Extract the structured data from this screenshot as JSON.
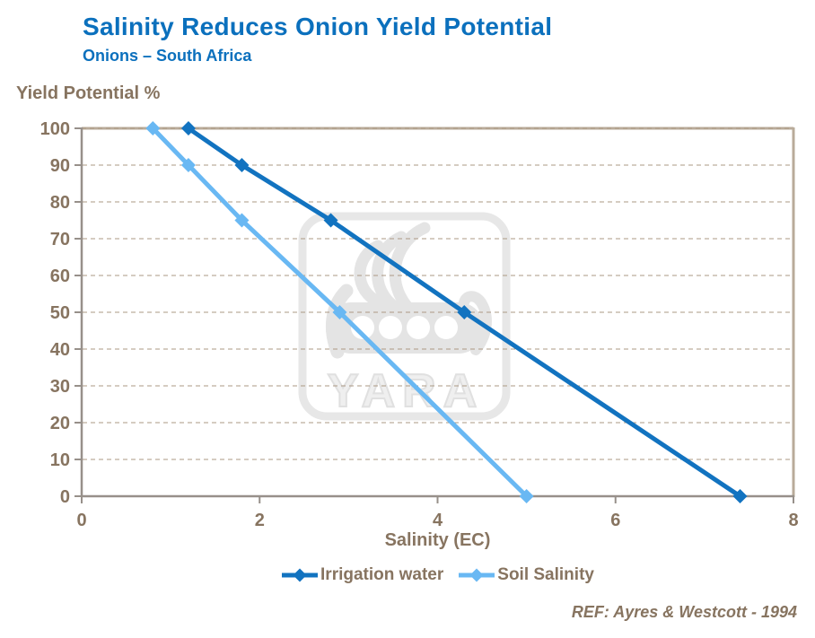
{
  "colors": {
    "title": "#0b70bd",
    "axis_text": "#877460",
    "grid_line": "#ab9883",
    "frame_line": "#b9ab9a",
    "axis_line": "#97908a",
    "watermark": "#e6e6e6"
  },
  "watermark": {
    "label": "YARA"
  },
  "footer": {
    "reference": "REF: Ayres & Westcott - 1994"
  },
  "chart_data": {
    "type": "line",
    "title": "Salinity Reduces Onion Yield Potential",
    "subtitle": "Onions – South Africa",
    "xlabel": "Salinity (EC)",
    "ylabel": "Yield Potential %",
    "xlim": [
      0,
      8
    ],
    "ylim": [
      0,
      100
    ],
    "x_ticks": [
      0,
      2,
      4,
      6,
      8
    ],
    "y_ticks": [
      0,
      10,
      20,
      30,
      40,
      50,
      60,
      70,
      80,
      90,
      100
    ],
    "grid": "horizontal dashed",
    "legend_position": "bottom-center",
    "series": [
      {
        "name": "Irrigation water",
        "color": "#1273c0",
        "marker": "diamond",
        "points": [
          [
            1.2,
            100
          ],
          [
            1.8,
            90
          ],
          [
            2.8,
            75
          ],
          [
            4.3,
            50
          ],
          [
            7.4,
            0
          ]
        ]
      },
      {
        "name": "Soil Salinity",
        "color": "#69b8f3",
        "marker": "diamond",
        "points": [
          [
            0.8,
            100
          ],
          [
            1.2,
            90
          ],
          [
            1.8,
            75
          ],
          [
            2.9,
            50
          ],
          [
            5.0,
            0
          ]
        ]
      }
    ]
  }
}
